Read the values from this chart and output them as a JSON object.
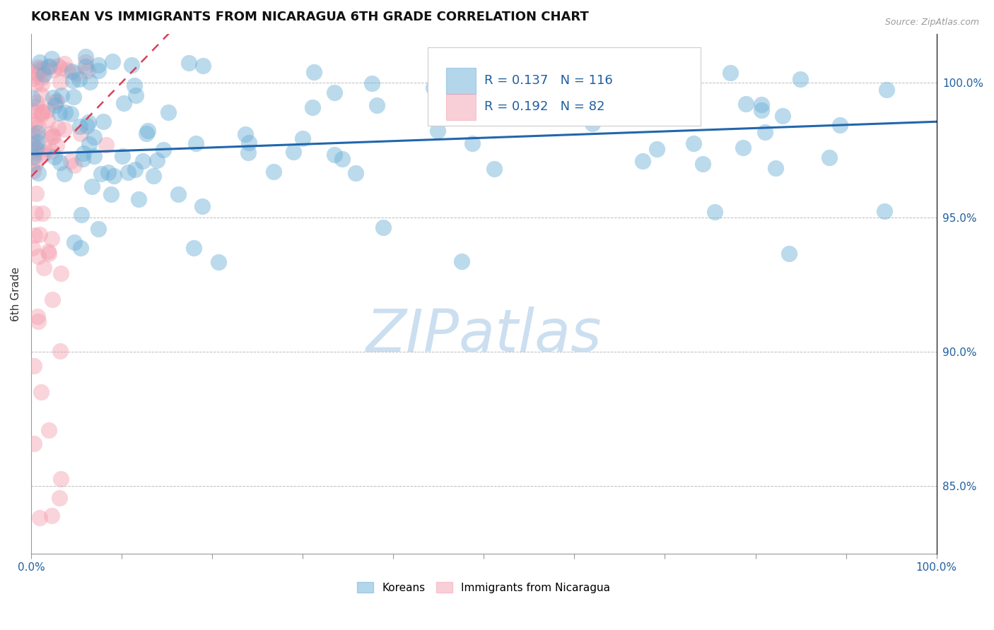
{
  "title": "KOREAN VS IMMIGRANTS FROM NICARAGUA 6TH GRADE CORRELATION CHART",
  "source_text": "Source: ZipAtlas.com",
  "ylabel": "6th Grade",
  "ylabel_right_ticks": [
    85.0,
    90.0,
    95.0,
    100.0
  ],
  "ylabel_right_labels": [
    "85.0%",
    "90.0%",
    "95.0%",
    "100.0%"
  ],
  "xmin": 0.0,
  "xmax": 100.0,
  "ymin": 82.5,
  "ymax": 101.8,
  "legend_korean_R": "0.137",
  "legend_korean_N": "116",
  "legend_nicaragua_R": "0.192",
  "legend_nicaragua_N": "82",
  "legend_label_korean": "Koreans",
  "legend_label_nicaragua": "Immigrants from Nicaragua",
  "color_korean": "#6aaed6",
  "color_nicaragua": "#f4a0b0",
  "color_korean_line": "#2166ac",
  "color_nicaragua_line": "#d6425a",
  "background_color": "#ffffff",
  "watermark_text": "ZIPatlas",
  "watermark_color": "#ccdff0",
  "watermark_fontsize": 60
}
